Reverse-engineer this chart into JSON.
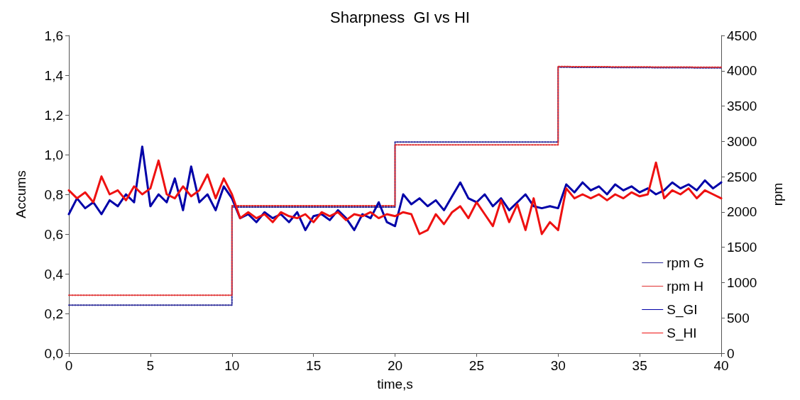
{
  "chart_data": {
    "type": "line",
    "title": "Sharpness  GI vs HI",
    "xlabel": "time,s",
    "ylabel": "Accums",
    "y2label": "rpm",
    "xlim": [
      0,
      40
    ],
    "xticks": [
      0,
      5,
      10,
      15,
      20,
      25,
      30,
      35,
      40
    ],
    "ylim": [
      0,
      1.6
    ],
    "yticks": [
      {
        "value": 0,
        "label": "0,0"
      },
      {
        "value": 0.2,
        "label": "0,2"
      },
      {
        "value": 0.4,
        "label": "0,4"
      },
      {
        "value": 0.6,
        "label": "0,6"
      },
      {
        "value": 0.8,
        "label": "0,8"
      },
      {
        "value": 1.0,
        "label": "1,0"
      },
      {
        "value": 1.2,
        "label": "1,2"
      },
      {
        "value": 1.4,
        "label": "1,4"
      },
      {
        "value": 1.6,
        "label": "1,6"
      }
    ],
    "y2lim": [
      0,
      4500
    ],
    "y2ticks": [
      0,
      500,
      1000,
      1500,
      2000,
      2500,
      3000,
      3500,
      4000,
      4500
    ],
    "legend": "bottom right",
    "grid": false,
    "marker": "none",
    "series": [
      {
        "name": "rpm G",
        "color": "#2b2b9a",
        "axis": "y2",
        "line_style": "dotted",
        "x": [
          0,
          10,
          10,
          20,
          20,
          30,
          30,
          40
        ],
        "values": [
          680,
          680,
          2070,
          2070,
          2990,
          2990,
          4050,
          4040
        ]
      },
      {
        "name": "rpm H",
        "color": "#e03030",
        "axis": "y2",
        "line_style": "dotted",
        "x": [
          0,
          10,
          10,
          20,
          20,
          30,
          30,
          40
        ],
        "values": [
          820,
          820,
          2090,
          2090,
          2950,
          2950,
          4060,
          4050
        ]
      },
      {
        "name": "S_GI",
        "color": "#0000a8",
        "line_style": "solid",
        "x": [
          0,
          0.5,
          1,
          1.5,
          2,
          2.5,
          3,
          3.5,
          4,
          4.5,
          5,
          5.5,
          6,
          6.5,
          7,
          7.5,
          8,
          8.5,
          9,
          9.5,
          10,
          10.5,
          11,
          11.5,
          12,
          12.5,
          13,
          13.5,
          14,
          14.5,
          15,
          15.5,
          16,
          16.5,
          17,
          17.5,
          18,
          18.5,
          19,
          19.5,
          20,
          20.5,
          21,
          21.5,
          22,
          22.5,
          23,
          23.5,
          24,
          24.5,
          25,
          25.5,
          26,
          26.5,
          27,
          27.5,
          28,
          28.5,
          29,
          29.5,
          30,
          30.5,
          31,
          31.5,
          32,
          32.5,
          33,
          33.5,
          34,
          34.5,
          35,
          35.5,
          36,
          36.5,
          37,
          37.5,
          38,
          38.5,
          39,
          39.5,
          40
        ],
        "values": [
          0.7,
          0.78,
          0.73,
          0.76,
          0.7,
          0.77,
          0.74,
          0.8,
          0.76,
          1.04,
          0.74,
          0.8,
          0.76,
          0.88,
          0.72,
          0.94,
          0.76,
          0.8,
          0.72,
          0.84,
          0.78,
          0.68,
          0.7,
          0.66,
          0.71,
          0.68,
          0.7,
          0.66,
          0.71,
          0.62,
          0.69,
          0.7,
          0.67,
          0.72,
          0.68,
          0.62,
          0.7,
          0.68,
          0.76,
          0.66,
          0.64,
          0.8,
          0.75,
          0.78,
          0.74,
          0.77,
          0.72,
          0.79,
          0.86,
          0.78,
          0.76,
          0.8,
          0.74,
          0.78,
          0.72,
          0.76,
          0.8,
          0.74,
          0.73,
          0.74,
          0.73,
          0.85,
          0.81,
          0.86,
          0.82,
          0.84,
          0.8,
          0.85,
          0.82,
          0.84,
          0.81,
          0.83,
          0.8,
          0.82,
          0.86,
          0.83,
          0.85,
          0.82,
          0.87,
          0.83,
          0.86
        ]
      },
      {
        "name": "S_HI",
        "color": "#ee1111",
        "line_style": "solid",
        "x": [
          0,
          0.5,
          1,
          1.5,
          2,
          2.5,
          3,
          3.5,
          4,
          4.5,
          5,
          5.5,
          6,
          6.5,
          7,
          7.5,
          8,
          8.5,
          9,
          9.5,
          10,
          10.5,
          11,
          11.5,
          12,
          12.5,
          13,
          13.5,
          14,
          14.5,
          15,
          15.5,
          16,
          16.5,
          17,
          17.5,
          18,
          18.5,
          19,
          19.5,
          20,
          20.5,
          21,
          21.5,
          22,
          22.5,
          23,
          23.5,
          24,
          24.5,
          25,
          25.5,
          26,
          26.5,
          27,
          27.5,
          28,
          28.5,
          29,
          29.5,
          30,
          30.5,
          31,
          31.5,
          32,
          32.5,
          33,
          33.5,
          34,
          34.5,
          35,
          35.5,
          36,
          36.5,
          37,
          37.5,
          38,
          38.5,
          39,
          39.5,
          40
        ],
        "values": [
          0.82,
          0.78,
          0.81,
          0.76,
          0.89,
          0.8,
          0.82,
          0.77,
          0.84,
          0.8,
          0.83,
          0.97,
          0.8,
          0.78,
          0.84,
          0.79,
          0.82,
          0.9,
          0.78,
          0.88,
          0.8,
          0.68,
          0.71,
          0.68,
          0.7,
          0.66,
          0.71,
          0.69,
          0.68,
          0.7,
          0.66,
          0.71,
          0.69,
          0.71,
          0.67,
          0.7,
          0.69,
          0.71,
          0.68,
          0.7,
          0.69,
          0.71,
          0.7,
          0.6,
          0.62,
          0.7,
          0.65,
          0.71,
          0.74,
          0.68,
          0.76,
          0.7,
          0.64,
          0.77,
          0.66,
          0.75,
          0.62,
          0.78,
          0.6,
          0.66,
          0.62,
          0.83,
          0.78,
          0.8,
          0.78,
          0.8,
          0.77,
          0.8,
          0.78,
          0.81,
          0.79,
          0.8,
          0.96,
          0.78,
          0.82,
          0.8,
          0.83,
          0.78,
          0.82,
          0.8,
          0.78
        ]
      }
    ]
  }
}
